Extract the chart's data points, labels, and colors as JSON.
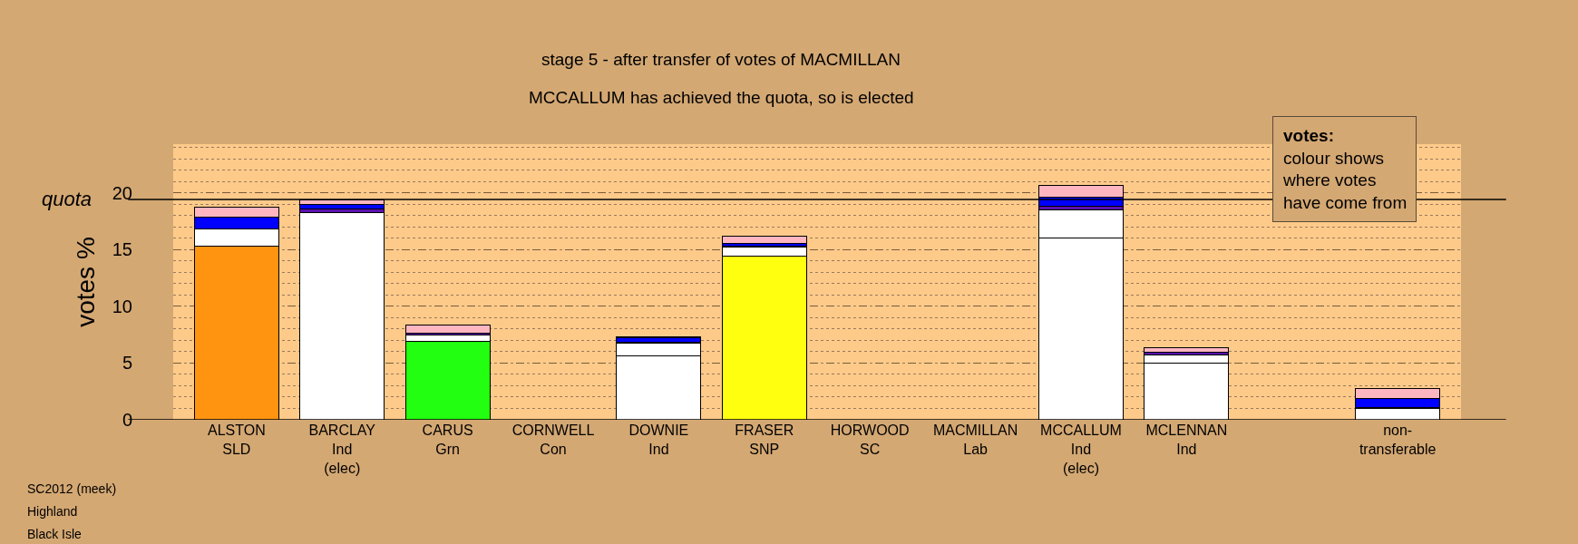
{
  "chart_data": {
    "type": "bar",
    "title": "stage 5 - after transfer of votes of MACMILLAN",
    "subtitle": "MCCALLUM has achieved the quota, so is elected",
    "ylabel": "votes %",
    "categories": [
      "ALSTON\nSLD",
      "BARCLAY\nInd\n(elec)",
      "CARUS\nGrn",
      "CORNWELL\nCon",
      "DOWNIE\nInd",
      "FRASER\nSNP",
      "HORWOOD\nSC",
      "MACMILLAN\nLab",
      "MCCALLUM\nInd\n(elec)",
      "MCLENNAN\nInd",
      null,
      "non-\ntransferable"
    ],
    "stacked": true,
    "series": [
      {
        "colors": [
          "#ff9410",
          "#ffffff",
          "#22ff10",
          "#ffffff",
          "#ffffff",
          "#ffff10",
          "#ffffff",
          "#ffffff",
          "#ffffff",
          "#ffffff",
          "#ffffff",
          "#ffffff"
        ],
        "values": [
          15.3,
          18.3,
          6.9,
          null,
          5.65,
          14.4,
          null,
          null,
          16.0,
          5.0,
          null,
          1.0
        ]
      },
      {
        "color": "#ffffff",
        "values": [
          1.5,
          null,
          0.55,
          null,
          1.1,
          0.8,
          null,
          null,
          2.5,
          0.7,
          null,
          null
        ]
      },
      {
        "color": "#5a10b0",
        "values": [
          0.05,
          0.25,
          0.2,
          null,
          0.1,
          0.1,
          null,
          null,
          0.35,
          0.25,
          null,
          0.05
        ]
      },
      {
        "color": "#0000ff",
        "values": [
          1.0,
          0.45,
          null,
          null,
          0.35,
          0.25,
          null,
          null,
          0.8,
          null,
          null,
          0.85
        ]
      },
      {
        "color": "#ffb6c1",
        "values": [
          0.9,
          0.4,
          0.7,
          null,
          0.1,
          0.6,
          null,
          null,
          1.05,
          0.4,
          null,
          0.85
        ]
      }
    ],
    "ylim": [
      0,
      24.3
    ],
    "yticks": [
      0,
      5,
      10,
      15,
      20
    ],
    "grid": "y",
    "ref_lines": [
      {
        "axis": "y",
        "value": 19.43,
        "label": "quota",
        "color": "#000000",
        "line_style": "solid"
      }
    ],
    "annotations": [
      "votes:",
      "colour shows\nwhere votes\nhave come from",
      "SC2012 (meek)",
      "Highland",
      "Black Isle"
    ]
  }
}
